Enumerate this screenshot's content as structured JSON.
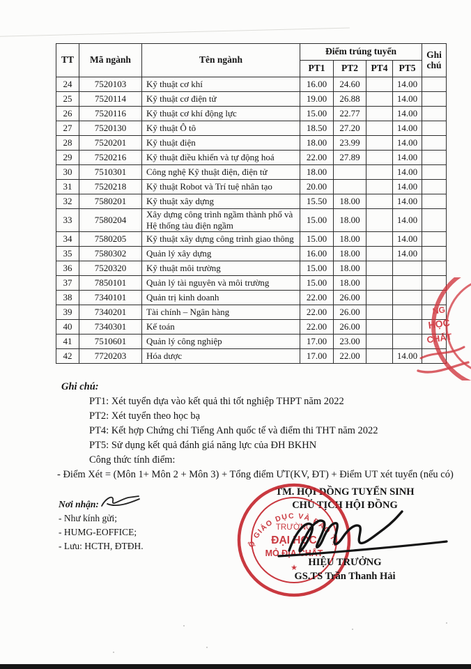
{
  "table": {
    "headers": {
      "tt": "TT",
      "ma_nganh": "Mã ngành",
      "ten_nganh": "Tên ngành",
      "diem_trung_tuyen": "Điểm trúng tuyển",
      "pt_columns": [
        "PT1",
        "PT2",
        "PT4",
        "PT5"
      ],
      "ghi_chu": "Ghi chú"
    },
    "rows": [
      {
        "tt": "24",
        "code": "7520103",
        "name": "Kỹ thuật cơ khí",
        "pt1": "16.00",
        "pt2": "24.60",
        "pt4": "",
        "pt5": "14.00",
        "note": ""
      },
      {
        "tt": "25",
        "code": "7520114",
        "name": "Kỹ thuật cơ điện tử",
        "pt1": "19.00",
        "pt2": "26.88",
        "pt4": "",
        "pt5": "14.00",
        "note": ""
      },
      {
        "tt": "26",
        "code": "7520116",
        "name": "Kỹ thuật cơ khí động lực",
        "pt1": "15.00",
        "pt2": "22.77",
        "pt4": "",
        "pt5": "14.00",
        "note": ""
      },
      {
        "tt": "27",
        "code": "7520130",
        "name": "Kỹ thuật Ô tô",
        "pt1": "18.50",
        "pt2": "27.20",
        "pt4": "",
        "pt5": "14.00",
        "note": ""
      },
      {
        "tt": "28",
        "code": "7520201",
        "name": "Kỹ thuật điện",
        "pt1": "18.00",
        "pt2": "23.99",
        "pt4": "",
        "pt5": "14.00",
        "note": ""
      },
      {
        "tt": "29",
        "code": "7520216",
        "name": "Kỹ thuật điều khiển và tự động hoá",
        "pt1": "22.00",
        "pt2": "27.89",
        "pt4": "",
        "pt5": "14.00",
        "note": ""
      },
      {
        "tt": "30",
        "code": "7510301",
        "name": "Công nghệ Kỹ thuật điện, điện tử",
        "pt1": "18.00",
        "pt2": "",
        "pt4": "",
        "pt5": "14.00",
        "note": ""
      },
      {
        "tt": "31",
        "code": "7520218",
        "name": "Kỹ thuật Robot và Trí tuệ nhân tạo",
        "pt1": "20.00",
        "pt2": "",
        "pt4": "",
        "pt5": "14.00",
        "note": ""
      },
      {
        "tt": "32",
        "code": "7580201",
        "name": "Kỹ thuật xây dựng",
        "pt1": "15.50",
        "pt2": "18.00",
        "pt4": "",
        "pt5": "14.00",
        "note": ""
      },
      {
        "tt": "33",
        "code": "7580204",
        "name": "Xây dựng công trình ngầm thành phố và Hệ thống tàu điện ngầm",
        "pt1": "15.00",
        "pt2": "18.00",
        "pt4": "",
        "pt5": "14.00",
        "note": ""
      },
      {
        "tt": "34",
        "code": "7580205",
        "name": "Kỹ thuật xây dựng công trình giao thông",
        "pt1": "15.00",
        "pt2": "18.00",
        "pt4": "",
        "pt5": "14.00",
        "note": ""
      },
      {
        "tt": "35",
        "code": "7580302",
        "name": "Quản lý xây dựng",
        "pt1": "16.00",
        "pt2": "18.00",
        "pt4": "",
        "pt5": "14.00",
        "note": ""
      },
      {
        "tt": "36",
        "code": "7520320",
        "name": "Kỹ thuật môi trường",
        "pt1": "15.00",
        "pt2": "18.00",
        "pt4": "",
        "pt5": "",
        "note": ""
      },
      {
        "tt": "37",
        "code": "7850101",
        "name": "Quản lý tài nguyên và môi trường",
        "pt1": "15.00",
        "pt2": "18.00",
        "pt4": "",
        "pt5": "",
        "note": ""
      },
      {
        "tt": "38",
        "code": "7340101",
        "name": "Quản trị kinh doanh",
        "pt1": "22.00",
        "pt2": "26.00",
        "pt4": "",
        "pt5": "",
        "note": ""
      },
      {
        "tt": "39",
        "code": "7340201",
        "name": "Tài chính – Ngân hàng",
        "pt1": "22.00",
        "pt2": "26.00",
        "pt4": "",
        "pt5": "",
        "note": ""
      },
      {
        "tt": "40",
        "code": "7340301",
        "name": "Kế toán",
        "pt1": "22.00",
        "pt2": "26.00",
        "pt4": "",
        "pt5": "",
        "note": ""
      },
      {
        "tt": "41",
        "code": "7510601",
        "name": "Quản lý công nghiệp",
        "pt1": "17.00",
        "pt2": "23.00",
        "pt4": "",
        "pt5": "",
        "note": ""
      },
      {
        "tt": "42",
        "code": "7720203",
        "name": "Hóa dược",
        "pt1": "17.00",
        "pt2": "22.00",
        "pt4": "",
        "pt5": "14.00",
        "note": ""
      }
    ]
  },
  "notes": {
    "heading": "Ghi chú:",
    "lines": [
      "PT1: Xét tuyển dựa vào kết quả thi tốt nghiệp THPT năm 2022",
      "PT2: Xét tuyển theo học bạ",
      "PT4: Kết hợp Chứng chỉ Tiếng Anh quốc tế và điểm thi THT năm 2022",
      "PT5: Sử dụng kết quả đánh giá năng lực của ĐH BKHN",
      "Công thức tính điểm:"
    ],
    "formula": "- Điểm Xét = (Môn 1+ Môn 2 + Môn 3) + Tổng điểm ƯT(KV, ĐT) + Điểm UT xét tuyển (nếu có)"
  },
  "footer": {
    "recipients": {
      "heading": "Nơi nhận:",
      "items": [
        "- Như kính gửi;",
        "- HUMG-EOFFICE;",
        "- Lưu: HCTH, ĐTĐH."
      ]
    },
    "signature_block": {
      "line1": "TM. HỘI ĐỒNG TUYỂN SINH",
      "line2": "CHỦ TỊCH HỘI ĐỒNG",
      "title": "HIỆU TRƯỞNG",
      "signer": "GS.TS Trần Thanh Hải"
    },
    "round_stamp": {
      "ring_text": "BỘ GIÁO DỤC VÀ ĐÀO TẠO",
      "line1": "TRƯỜNG",
      "line2": "ĐẠI HỌC",
      "line3": "MỎ ĐỊA CHẤT",
      "color": "#c4242c"
    },
    "edge_stamp": {
      "fragments": [
        "NG",
        "HỌC",
        "CHẤT"
      ],
      "color": "#cf3038"
    }
  }
}
